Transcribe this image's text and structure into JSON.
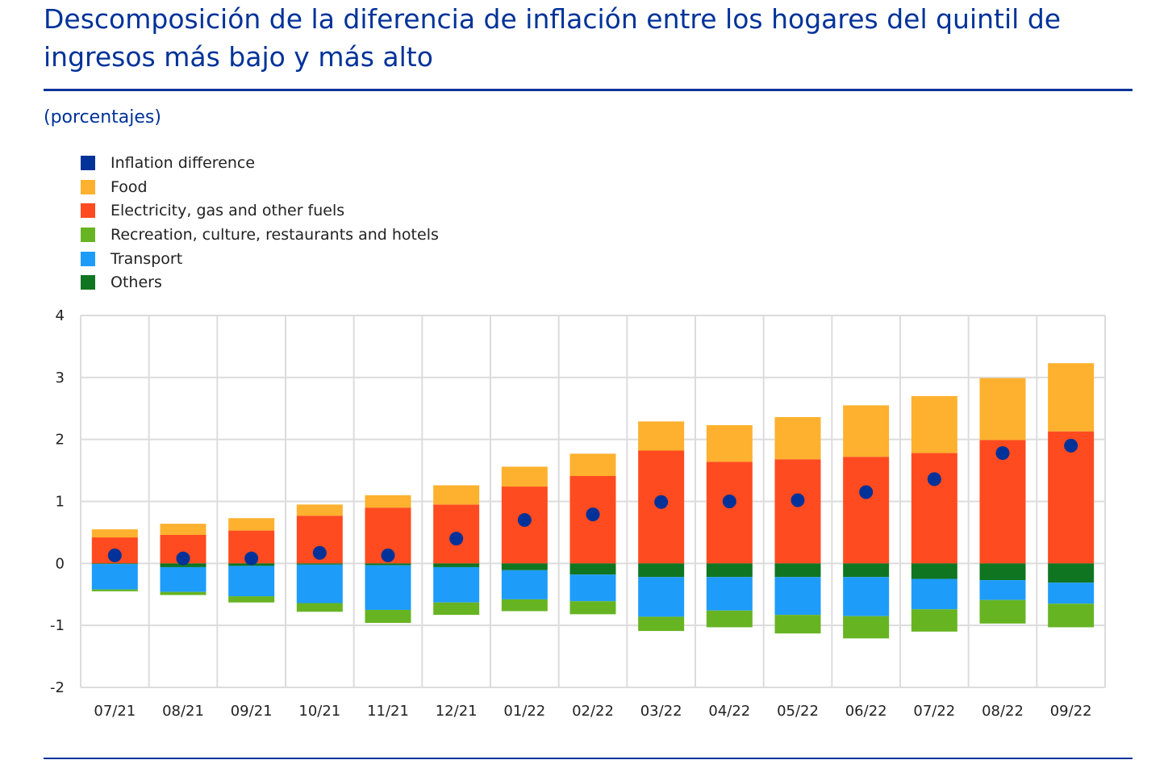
{
  "title": "Descomposición de la diferencia de inflación entre los hogares del quintil de ingresos más bajo y más alto",
  "subtitle": "(porcentajes)",
  "chart_data": {
    "type": "bar",
    "stacked": true,
    "title": "Descomposición de la diferencia de inflación entre los hogares del quintil de ingresos más bajo y más alto",
    "ylabel": "(porcentajes)",
    "ylim": [
      -2,
      4
    ],
    "yticks": [
      4,
      3,
      2,
      1,
      0,
      -1,
      -2
    ],
    "grid": true,
    "legend_position": "top-left",
    "categories": [
      "07/21",
      "08/21",
      "09/21",
      "10/21",
      "11/21",
      "12/21",
      "01/22",
      "02/22",
      "03/22",
      "04/22",
      "05/22",
      "06/22",
      "07/22",
      "08/22",
      "09/22"
    ],
    "series": [
      {
        "name": "Electricity, gas and other fuels",
        "color": "#FF4B1F",
        "values": [
          0.42,
          0.46,
          0.53,
          0.77,
          0.9,
          0.95,
          1.24,
          1.41,
          1.82,
          1.64,
          1.68,
          1.72,
          1.78,
          1.99,
          2.13
        ]
      },
      {
        "name": "Food",
        "color": "#FDB12E",
        "values": [
          0.13,
          0.18,
          0.2,
          0.18,
          0.2,
          0.31,
          0.32,
          0.36,
          0.47,
          0.59,
          0.68,
          0.83,
          0.92,
          1.0,
          1.1
        ]
      },
      {
        "name": "Others",
        "color": "#0F7521",
        "values": [
          -0.01,
          -0.06,
          -0.04,
          -0.02,
          -0.03,
          -0.06,
          -0.11,
          -0.18,
          -0.22,
          -0.22,
          -0.22,
          -0.22,
          -0.25,
          -0.27,
          -0.31
        ]
      },
      {
        "name": "Transport",
        "color": "#1E9CF9",
        "values": [
          -0.41,
          -0.4,
          -0.49,
          -0.62,
          -0.72,
          -0.57,
          -0.47,
          -0.43,
          -0.64,
          -0.54,
          -0.61,
          -0.63,
          -0.49,
          -0.32,
          -0.34
        ]
      },
      {
        "name": "Recreation, culture, restaurants and hotels",
        "color": "#67B423",
        "values": [
          -0.03,
          -0.05,
          -0.1,
          -0.14,
          -0.21,
          -0.2,
          -0.19,
          -0.21,
          -0.23,
          -0.27,
          -0.3,
          -0.36,
          -0.36,
          -0.38,
          -0.38
        ]
      }
    ],
    "dots": {
      "name": "Inflation difference",
      "color": "#003299",
      "values": [
        0.13,
        0.08,
        0.08,
        0.17,
        0.13,
        0.4,
        0.7,
        0.79,
        0.99,
        1.0,
        1.02,
        1.15,
        1.36,
        1.78,
        1.9
      ]
    },
    "legend": [
      "Inflation difference",
      "Food",
      "Electricity, gas and other fuels",
      "Recreation, culture, restaurants and hotels",
      "Transport",
      "Others"
    ],
    "legend_colors": [
      "#003299",
      "#FDB12E",
      "#FF4B1F",
      "#67B423",
      "#1E9CF9",
      "#0F7521"
    ]
  }
}
